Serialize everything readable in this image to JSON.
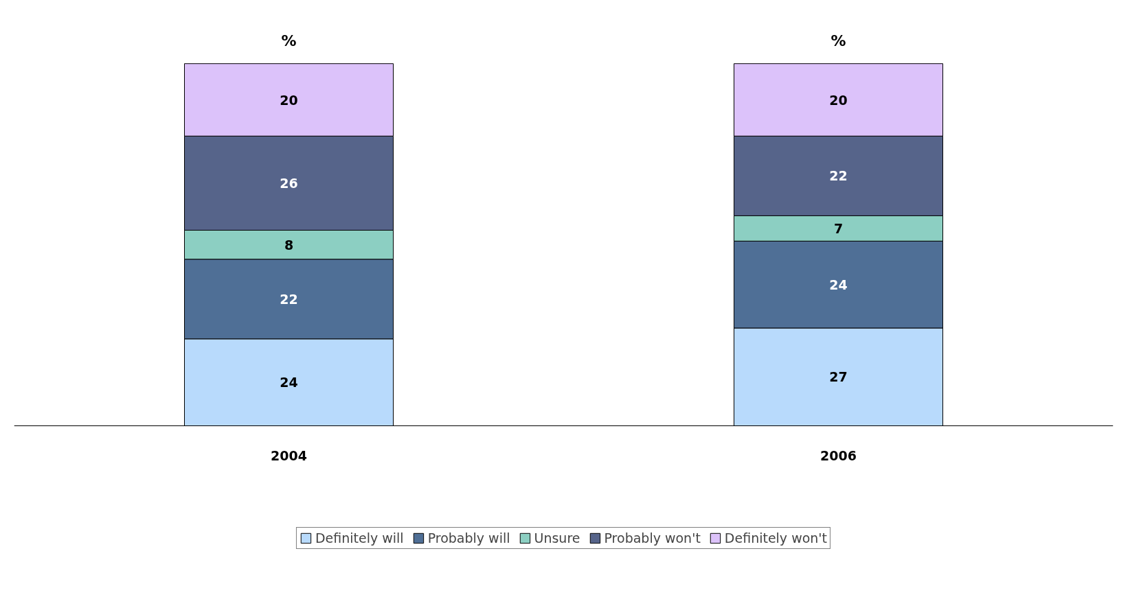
{
  "chart_data": {
    "type": "bar",
    "stacked": true,
    "categories": [
      "2004",
      "2006"
    ],
    "series": [
      {
        "name": "Definitely will",
        "color": "#b8dafc",
        "values": [
          24,
          27
        ]
      },
      {
        "name": "Probably will",
        "color": "#4f6f96",
        "values": [
          22,
          24
        ]
      },
      {
        "name": "Unsure",
        "color": "#8ccfc2",
        "values": [
          8,
          7
        ]
      },
      {
        "name": "Probably won't",
        "color": "#56648a",
        "values": [
          26,
          22
        ]
      },
      {
        "name": "Definitely won't",
        "color": "#dcc2fa",
        "values": [
          20,
          20
        ]
      }
    ],
    "data_labels": true,
    "totals": [
      "%",
      "%"
    ],
    "legend": "bottom",
    "grid": false
  }
}
